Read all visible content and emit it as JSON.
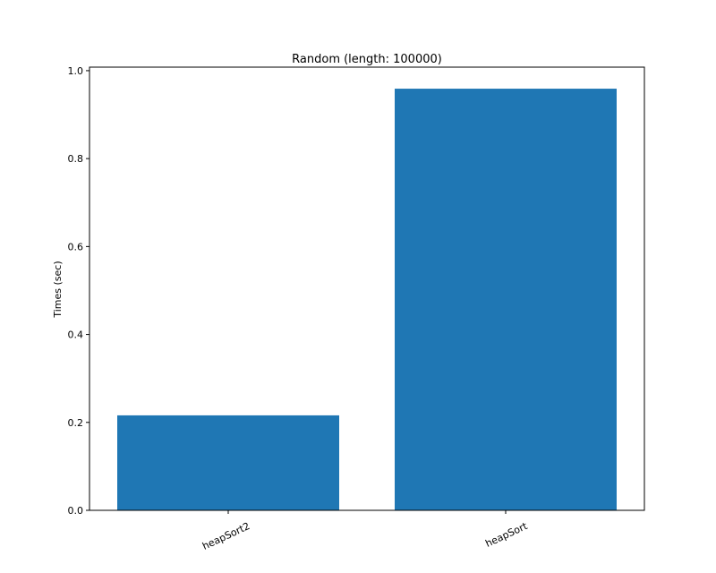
{
  "chart_data": {
    "type": "bar",
    "title": "Random (length: 100000)",
    "ylabel": "Times (sec)",
    "categories": [
      "heapSort2",
      "heapSort"
    ],
    "values": [
      0.216,
      0.959
    ],
    "color": "#1f77b4",
    "ylim": [
      0,
      1.008
    ],
    "yticks": [
      {
        "value": 0,
        "label": "0.0"
      },
      0.2,
      0.4,
      0.6,
      0.8,
      {
        "value": 1,
        "label": "1.0"
      }
    ],
    "grid": false
  }
}
